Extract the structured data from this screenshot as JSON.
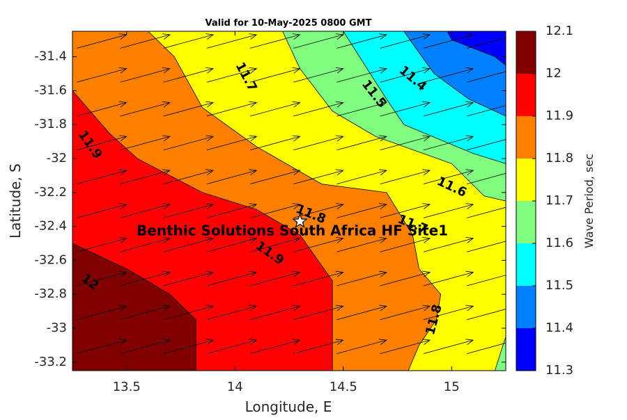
{
  "chart_data": {
    "type": "contour",
    "title": "Valid for 10-May-2025 0800 GMT",
    "xlabel": "Longitude, E",
    "ylabel": "Latitude, S",
    "xlim": [
      13.25,
      15.25
    ],
    "ylim": [
      -33.25,
      -31.25
    ],
    "xticks": [
      13.5,
      14,
      14.5,
      15
    ],
    "xtick_labels": [
      "13.5",
      "14",
      "14.5",
      "15"
    ],
    "yticks": [
      -31.4,
      -31.6,
      -31.8,
      -32,
      -32.2,
      -32.4,
      -32.6,
      -32.8,
      -33,
      -33.2
    ],
    "ytick_labels": [
      "-31.4",
      "-31.6",
      "-31.8",
      "-32",
      "-32.2",
      "-32.4",
      "-32.6",
      "-32.8",
      "-33",
      "-33.2"
    ],
    "grid": false,
    "colorbar": {
      "label": "Wave Period, sec",
      "levels": [
        11.3,
        11.4,
        11.5,
        11.6,
        11.7,
        11.8,
        11.9,
        12.0,
        12.1
      ],
      "tick_labels": [
        "11.3",
        "11.4",
        "11.5",
        "11.6",
        "11.7",
        "11.8",
        "11.9",
        "12",
        "12.1"
      ],
      "colors": [
        "#0000ff",
        "#0080ff",
        "#00ffff",
        "#80ff80",
        "#ffff00",
        "#ff8000",
        "#ff0000",
        "#800000"
      ]
    },
    "bands": [
      {
        "level": 12.0,
        "polygon": [
          [
            13.25,
            -32.5
          ],
          [
            13.5,
            -32.65
          ],
          [
            13.7,
            -32.8
          ],
          [
            13.82,
            -32.95
          ],
          [
            13.82,
            -33.25
          ],
          [
            13.25,
            -33.25
          ]
        ]
      },
      {
        "level": 11.9,
        "polygon": [
          [
            13.25,
            -31.6
          ],
          [
            13.42,
            -31.85
          ],
          [
            13.55,
            -32.0
          ],
          [
            13.85,
            -32.2
          ],
          [
            14.1,
            -32.3
          ],
          [
            14.3,
            -32.45
          ],
          [
            14.45,
            -32.72
          ],
          [
            14.45,
            -33.25
          ],
          [
            13.82,
            -33.25
          ],
          [
            13.82,
            -32.95
          ],
          [
            13.7,
            -32.8
          ],
          [
            13.5,
            -32.65
          ],
          [
            13.25,
            -32.5
          ]
        ]
      },
      {
        "level": 11.8,
        "polygon": [
          [
            13.25,
            -31.25
          ],
          [
            13.6,
            -31.25
          ],
          [
            13.72,
            -31.4
          ],
          [
            13.85,
            -31.7
          ],
          [
            14.1,
            -31.93
          ],
          [
            14.4,
            -32.15
          ],
          [
            14.7,
            -32.2
          ],
          [
            14.82,
            -32.45
          ],
          [
            14.85,
            -32.65
          ],
          [
            14.95,
            -32.8
          ],
          [
            14.93,
            -32.95
          ],
          [
            14.85,
            -33.1
          ],
          [
            14.8,
            -33.25
          ],
          [
            14.45,
            -33.25
          ],
          [
            14.45,
            -32.72
          ],
          [
            14.3,
            -32.45
          ],
          [
            14.1,
            -32.3
          ],
          [
            13.85,
            -32.2
          ],
          [
            13.55,
            -32.0
          ],
          [
            13.42,
            -31.85
          ],
          [
            13.25,
            -31.6
          ]
        ]
      },
      {
        "level": 11.7,
        "polygon": [
          [
            13.6,
            -31.25
          ],
          [
            14.22,
            -31.25
          ],
          [
            14.3,
            -31.47
          ],
          [
            14.45,
            -31.72
          ],
          [
            14.65,
            -31.87
          ],
          [
            15.0,
            -32.03
          ],
          [
            15.15,
            -32.22
          ],
          [
            15.25,
            -32.25
          ],
          [
            15.25,
            -33.05
          ],
          [
            15.2,
            -33.25
          ],
          [
            14.8,
            -33.25
          ],
          [
            14.85,
            -33.1
          ],
          [
            14.93,
            -32.95
          ],
          [
            14.95,
            -32.8
          ],
          [
            14.85,
            -32.65
          ],
          [
            14.82,
            -32.45
          ],
          [
            14.7,
            -32.2
          ],
          [
            14.4,
            -32.15
          ],
          [
            14.1,
            -31.93
          ],
          [
            13.85,
            -31.7
          ],
          [
            13.72,
            -31.4
          ]
        ]
      },
      {
        "level": 11.6,
        "polygon": [
          [
            14.22,
            -31.25
          ],
          [
            14.5,
            -31.25
          ],
          [
            14.6,
            -31.45
          ],
          [
            14.7,
            -31.65
          ],
          [
            14.78,
            -31.8
          ],
          [
            15.1,
            -31.97
          ],
          [
            15.25,
            -32.03
          ],
          [
            15.25,
            -32.25
          ],
          [
            15.15,
            -32.22
          ],
          [
            15.0,
            -32.03
          ],
          [
            14.65,
            -31.87
          ],
          [
            14.45,
            -31.72
          ],
          [
            14.3,
            -31.47
          ]
        ]
      },
      {
        "level": 11.5,
        "polygon": [
          [
            14.5,
            -31.25
          ],
          [
            14.78,
            -31.25
          ],
          [
            14.88,
            -31.43
          ],
          [
            14.92,
            -31.5
          ],
          [
            15.08,
            -31.65
          ],
          [
            15.25,
            -31.75
          ],
          [
            15.25,
            -32.03
          ],
          [
            15.1,
            -31.97
          ],
          [
            14.78,
            -31.8
          ],
          [
            14.7,
            -31.65
          ],
          [
            14.6,
            -31.45
          ]
        ]
      },
      {
        "level": 11.4,
        "polygon": [
          [
            14.78,
            -31.25
          ],
          [
            15.25,
            -31.25
          ],
          [
            15.25,
            -31.75
          ],
          [
            15.08,
            -31.65
          ],
          [
            14.92,
            -31.5
          ],
          [
            14.88,
            -31.43
          ]
        ]
      },
      {
        "level": 11.3,
        "polygon": [
          [
            14.98,
            -31.25
          ],
          [
            15.25,
            -31.25
          ],
          [
            15.25,
            -31.45
          ],
          [
            15.2,
            -31.4
          ],
          [
            15.1,
            -31.35
          ],
          [
            15.0,
            -31.3
          ]
        ]
      },
      {
        "level": 11.6,
        "polygon": [
          [
            15.2,
            -33.25
          ],
          [
            15.25,
            -33.05
          ],
          [
            15.25,
            -33.25
          ]
        ]
      }
    ],
    "contour_labels": [
      {
        "text": "11.7",
        "x": 14.05,
        "y": -31.52,
        "angle": 62
      },
      {
        "text": "11.5",
        "x": 14.64,
        "y": -31.62,
        "angle": 52
      },
      {
        "text": "11.4",
        "x": 14.82,
        "y": -31.53,
        "angle": 40
      },
      {
        "text": "11.9",
        "x": 13.33,
        "y": -31.92,
        "angle": 55
      },
      {
        "text": "11.6",
        "x": 15.0,
        "y": -32.17,
        "angle": 25
      },
      {
        "text": "11.8",
        "x": 14.35,
        "y": -32.33,
        "angle": 22
      },
      {
        "text": "11.7",
        "x": 14.82,
        "y": -32.39,
        "angle": 22
      },
      {
        "text": "11.9",
        "x": 14.16,
        "y": -32.56,
        "angle": 35
      },
      {
        "text": "12",
        "x": 13.33,
        "y": -32.73,
        "angle": 38
      },
      {
        "text": "11.8",
        "x": 14.92,
        "y": -32.95,
        "angle": -75
      }
    ],
    "site": {
      "name": "Benthic Solutions South Africa HF Site1",
      "lon": 14.3,
      "lat": -32.37
    },
    "vector_field": {
      "lon_start": 13.27,
      "lon_step": 0.2,
      "lon_count": 10,
      "lat_start": -31.35,
      "lat_step": -0.2,
      "lat_count": 10,
      "u": 0.23,
      "v": 0.08
    }
  }
}
